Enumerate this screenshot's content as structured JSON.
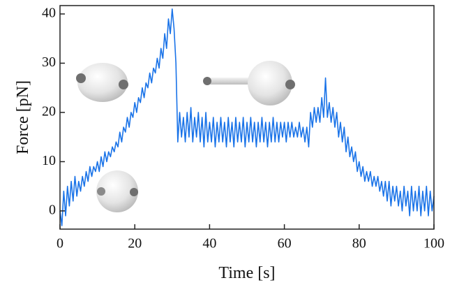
{
  "chart_data": {
    "type": "line",
    "x_label": "Time [s]",
    "y_label": "Force [pN]",
    "xlim": [
      0,
      100
    ],
    "ylim": [
      -3.7,
      41.7
    ],
    "xticks": [
      0,
      20,
      40,
      60,
      80,
      100
    ],
    "yticks": [
      0,
      10,
      20,
      30,
      40
    ],
    "series": [
      {
        "color": "#1a73e8",
        "x": [
          0,
          0.5,
          1,
          1.5,
          2,
          2.5,
          3,
          3.5,
          4,
          4.5,
          5,
          5.5,
          6,
          6.5,
          7,
          7.5,
          8,
          8.5,
          9,
          9.5,
          10,
          10.5,
          11,
          11.5,
          12,
          12.5,
          13,
          13.5,
          14,
          14.5,
          15,
          15.5,
          16,
          16.5,
          17,
          17.5,
          18,
          18.5,
          19,
          19.5,
          20,
          20.5,
          21,
          21.5,
          22,
          22.5,
          23,
          23.5,
          24,
          24.5,
          25,
          25.5,
          26,
          26.5,
          27,
          27.5,
          28,
          28.5,
          29,
          29.5,
          30,
          30.5,
          31,
          31.5,
          32,
          32.5,
          33,
          33.5,
          34,
          34.5,
          35,
          35.5,
          36,
          36.5,
          37,
          37.5,
          38,
          38.5,
          39,
          39.5,
          40,
          40.5,
          41,
          41.5,
          42,
          42.5,
          43,
          43.5,
          44,
          44.5,
          45,
          45.5,
          46,
          46.5,
          47,
          47.5,
          48,
          48.5,
          49,
          49.5,
          50,
          50.5,
          51,
          51.5,
          52,
          52.5,
          53,
          53.5,
          54,
          54.5,
          55,
          55.5,
          56,
          56.5,
          57,
          57.5,
          58,
          58.5,
          59,
          59.5,
          60,
          60.5,
          61,
          61.5,
          62,
          62.5,
          63,
          63.5,
          64,
          64.5,
          65,
          65.5,
          66,
          66.5,
          67,
          67.5,
          68,
          68.5,
          69,
          69.5,
          70,
          70.5,
          71,
          71.5,
          72,
          72.5,
          73,
          73.5,
          74,
          74.5,
          75,
          75.5,
          76,
          76.5,
          77,
          77.5,
          78,
          78.5,
          79,
          79.5,
          80,
          80.5,
          81,
          81.5,
          82,
          82.5,
          83,
          83.5,
          84,
          84.5,
          85,
          85.5,
          86,
          86.5,
          87,
          87.5,
          88,
          88.5,
          89,
          89.5,
          90,
          90.5,
          91,
          91.5,
          92,
          92.5,
          93,
          93.5,
          94,
          94.5,
          95,
          95.5,
          96,
          96.5,
          97,
          97.5,
          98,
          98.5,
          99,
          99.5,
          100
        ],
        "values": [
          0,
          -3,
          4,
          -1,
          5,
          1,
          6,
          2,
          7,
          3,
          6,
          4,
          7,
          5,
          8,
          6,
          9,
          7,
          9,
          8,
          10,
          8,
          11,
          9,
          12,
          10,
          12,
          11,
          13,
          12,
          14,
          13,
          16,
          14,
          17,
          16,
          19,
          17,
          20,
          19,
          22,
          20,
          23,
          22,
          25,
          23,
          26,
          25,
          28,
          26,
          29,
          28,
          31,
          29,
          33,
          31,
          36,
          33,
          39,
          36,
          41,
          37,
          30,
          14,
          20,
          15,
          19,
          14,
          20,
          15,
          21,
          14,
          19,
          15,
          20,
          14,
          19,
          13,
          20,
          14,
          18,
          14,
          19,
          13,
          18,
          14,
          19,
          14,
          18,
          13,
          19,
          14,
          18,
          13,
          19,
          14,
          18,
          14,
          19,
          13,
          18,
          14,
          19,
          14,
          18,
          13,
          18,
          14,
          19,
          14,
          18,
          13,
          18,
          14,
          19,
          14,
          18,
          14,
          18,
          15,
          18,
          14,
          18,
          15,
          18,
          15,
          17,
          15,
          18,
          15,
          17,
          14,
          17,
          13,
          20,
          17,
          21,
          18,
          21,
          18,
          23,
          19,
          27,
          19,
          22,
          18,
          21,
          17,
          20,
          15,
          18,
          14,
          17,
          12,
          15,
          11,
          13,
          10,
          12,
          8,
          10,
          7,
          9,
          6,
          8,
          6,
          8,
          5,
          7,
          5,
          7,
          4,
          6,
          3,
          6,
          2,
          6,
          1,
          5,
          2,
          5,
          1,
          4,
          0,
          5,
          1,
          4,
          -1,
          5,
          0,
          4,
          0,
          5,
          -1,
          4,
          0,
          5,
          -1,
          4,
          0,
          3
        ]
      }
    ]
  }
}
